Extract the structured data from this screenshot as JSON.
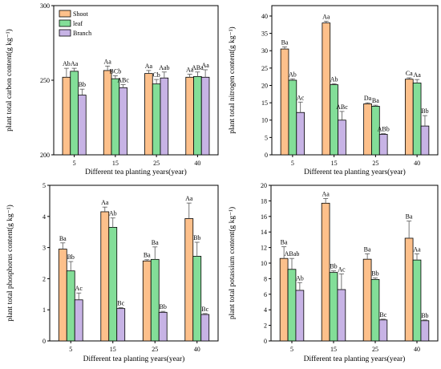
{
  "colors": {
    "Shoot": "#FDC08B",
    "leaf": "#83DE98",
    "Branch": "#C7B3E5",
    "stroke": "#000000",
    "error_bar": "#555555"
  },
  "chart_data": [
    {
      "type": "bar",
      "panel": "top-left",
      "categories": [
        "5",
        "15",
        "25",
        "40"
      ],
      "series": [
        {
          "name": "Shoot",
          "values": [
            252,
            256.5,
            254.5,
            252
          ],
          "errors": [
            6,
            3,
            2,
            2
          ],
          "labels": [
            "Ab",
            "Aa",
            "Aa",
            "Aa"
          ]
        },
        {
          "name": "leaf",
          "values": [
            256,
            251,
            247.5,
            252.5
          ],
          "errors": [
            2,
            2,
            3,
            3
          ],
          "labels": [
            "Aa",
            "BCb",
            "Cb",
            "ABa"
          ]
        },
        {
          "name": "Branch",
          "values": [
            240,
            245,
            251.5,
            252
          ],
          "errors": [
            4,
            2,
            4,
            5
          ],
          "labels": [
            "Bb",
            "ABc",
            "Aab",
            "Aa"
          ]
        }
      ],
      "title": "",
      "xlabel": "Different tea planting years(year)",
      "ylabel": "plant total carbon content(g kg⁻¹)",
      "ylim": [
        200,
        300
      ],
      "yticks": [
        "200",
        "250",
        "300"
      ],
      "legend": "top-left"
    },
    {
      "type": "bar",
      "panel": "top-right",
      "categories": [
        "5",
        "15",
        "25",
        "40"
      ],
      "series": [
        {
          "name": "Shoot",
          "values": [
            30.5,
            38,
            14.7,
            21.8
          ],
          "errors": [
            0.6,
            0.5,
            0.3,
            0.4
          ],
          "labels": [
            "Ba",
            "Aa",
            "Da",
            "Ca"
          ]
        },
        {
          "name": "leaf",
          "values": [
            21.5,
            20.2,
            14,
            20.7
          ],
          "errors": [
            0.4,
            0.3,
            0.3,
            1.0
          ],
          "labels": [
            "Ab",
            "Ab",
            "Ba",
            "Aa"
          ]
        },
        {
          "name": "Branch",
          "values": [
            12.2,
            10,
            5.9,
            8.3
          ],
          "errors": [
            3,
            2.5,
            0.2,
            3
          ],
          "labels": [
            "Ac",
            "ABc",
            "ABb",
            "Bb"
          ]
        }
      ],
      "title": "",
      "xlabel": "Different tea planting years(year)",
      "ylabel": "plant total nitrogen content(g kg⁻¹)",
      "ylim": [
        0,
        43
      ],
      "yticks": [
        "0",
        "5",
        "10",
        "15",
        "20",
        "25",
        "30",
        "35",
        "40"
      ]
    },
    {
      "type": "bar",
      "panel": "bottom-left",
      "categories": [
        "5",
        "15",
        "25",
        "40"
      ],
      "series": [
        {
          "name": "Shoot",
          "values": [
            2.95,
            4.15,
            2.57,
            3.93
          ],
          "errors": [
            0.2,
            0.15,
            0.04,
            0.5
          ],
          "labels": [
            "Ba",
            "Aa",
            "Ba",
            "Aa"
          ]
        },
        {
          "name": "leaf",
          "values": [
            2.25,
            3.65,
            2.62,
            2.72
          ],
          "errors": [
            0.3,
            0.3,
            0.4,
            0.45
          ],
          "labels": [
            "Bb",
            "Ab",
            "Ba",
            "Bb"
          ]
        },
        {
          "name": "Branch",
          "values": [
            1.32,
            1.04,
            0.92,
            0.85
          ],
          "errors": [
            0.22,
            0.03,
            0.03,
            0.03
          ],
          "labels": [
            "Ac",
            "Bc",
            "Bb",
            "Bc"
          ]
        }
      ],
      "title": "",
      "xlabel": "Different tea planting years(year)",
      "ylabel": "plant total phosphorus content(g kg⁻¹)",
      "ylim": [
        0,
        5
      ],
      "yticks": [
        "0",
        "1",
        "2",
        "3",
        "4",
        "5"
      ]
    },
    {
      "type": "bar",
      "panel": "bottom-right",
      "categories": [
        "5",
        "15",
        "25",
        "40"
      ],
      "series": [
        {
          "name": "Shoot",
          "values": [
            10.6,
            17.7,
            10.5,
            13.2
          ],
          "errors": [
            1.5,
            0.6,
            0.7,
            2.2
          ],
          "labels": [
            "Ba",
            "Aa",
            "Ba",
            "Ba"
          ]
        },
        {
          "name": "leaf",
          "values": [
            9.2,
            8.8,
            7.9,
            10.4
          ],
          "errors": [
            1.4,
            0.2,
            0.2,
            0.8
          ],
          "labels": [
            "ABab",
            "Bb",
            "Bb",
            "Aa"
          ]
        },
        {
          "name": "Branch",
          "values": [
            6.5,
            6.6,
            2.7,
            2.6
          ],
          "errors": [
            1.0,
            2.0,
            0.1,
            0.1
          ],
          "labels": [
            "Ab",
            "Ac",
            "Bc",
            "Bb"
          ]
        }
      ],
      "title": "",
      "xlabel": "Different tea planting years(year)",
      "ylabel": "plant total potassium content(g kg⁻¹)",
      "ylim": [
        0,
        20
      ],
      "yticks": [
        "0",
        "2",
        "4",
        "6",
        "8",
        "10",
        "12",
        "14",
        "16",
        "18",
        "20"
      ]
    }
  ]
}
